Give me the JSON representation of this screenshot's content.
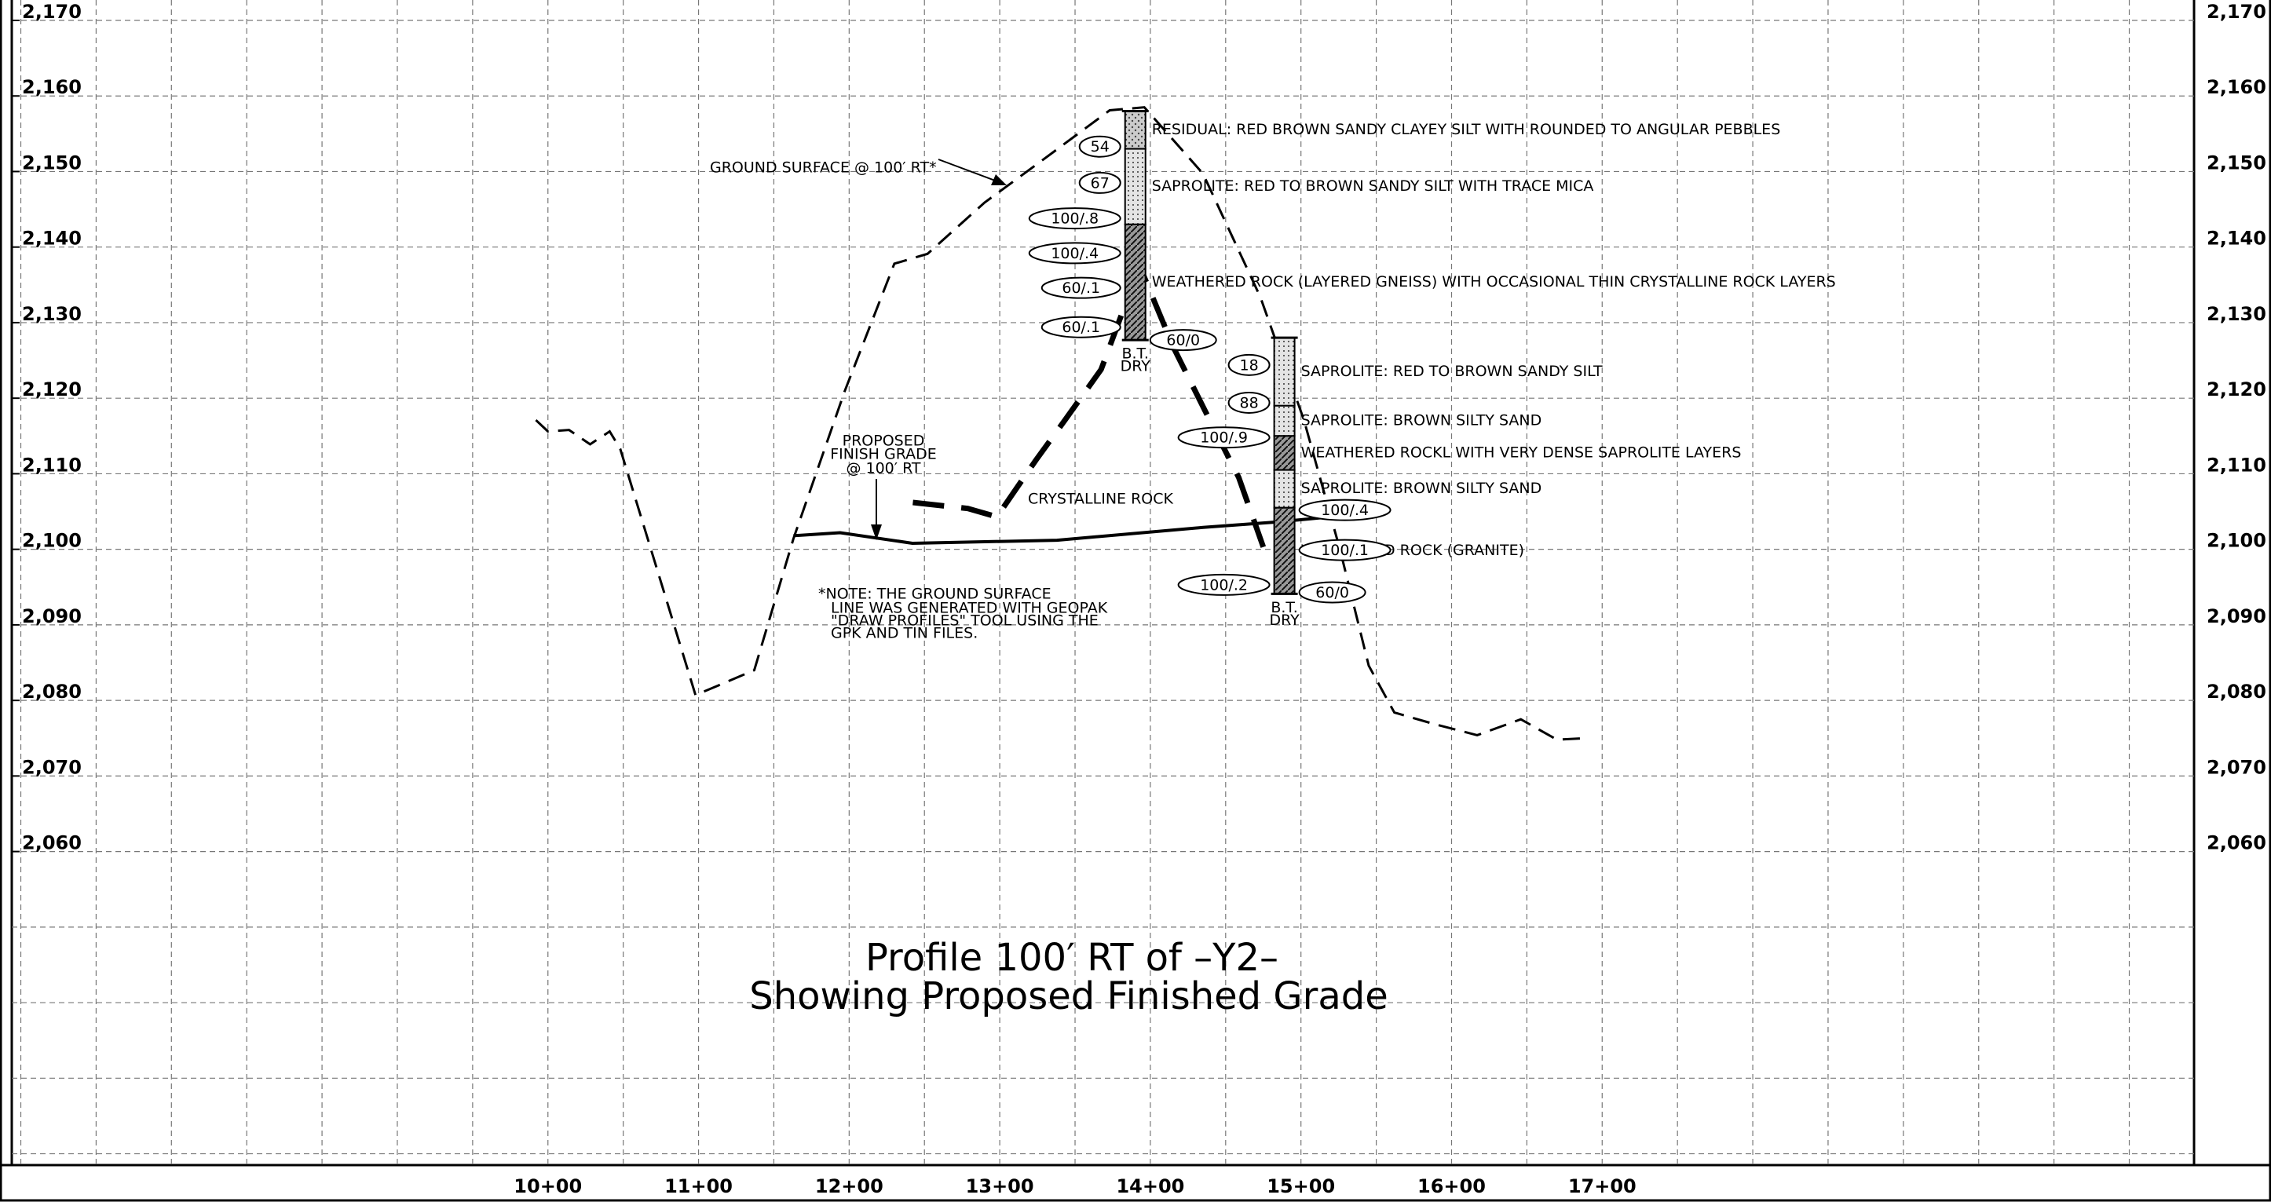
{
  "chart_data": {
    "type": "line",
    "title": "Profile 100′ RT of –Y2–",
    "subtitle": "Showing Proposed Finished Grade",
    "xlim": [
      644,
      2093
    ],
    "ylim": [
      2018.5,
      2172.7
    ],
    "xticks": [
      {
        "value": 1000,
        "label": "10+00"
      },
      {
        "value": 1100,
        "label": "11+00"
      },
      {
        "value": 1200,
        "label": "12+00"
      },
      {
        "value": 1300,
        "label": "13+00"
      },
      {
        "value": 1400,
        "label": "14+00"
      },
      {
        "value": 1500,
        "label": "15+00"
      },
      {
        "value": 1600,
        "label": "16+00"
      },
      {
        "value": 1700,
        "label": "17+00"
      }
    ],
    "yticks": [
      {
        "value": 2170,
        "label": "2,170"
      },
      {
        "value": 2160,
        "label": "2,160"
      },
      {
        "value": 2150,
        "label": "2,150"
      },
      {
        "value": 2140,
        "label": "2,140"
      },
      {
        "value": 2130,
        "label": "2,130"
      },
      {
        "value": 2120,
        "label": "2,120"
      },
      {
        "value": 2110,
        "label": "2,110"
      },
      {
        "value": 2100,
        "label": "2,100"
      },
      {
        "value": 2090,
        "label": "2,090"
      },
      {
        "value": 2080,
        "label": "2,080"
      },
      {
        "value": 2070,
        "label": "2,070"
      },
      {
        "value": 2060,
        "label": "2,060"
      }
    ],
    "xgrid": [
      650,
      700,
      750,
      800,
      850,
      900,
      950,
      1000,
      1050,
      1100,
      1150,
      1200,
      1250,
      1300,
      1350,
      1400,
      1450,
      1500,
      1550,
      1600,
      1650,
      1700,
      1750,
      1800,
      1850,
      1900,
      1950,
      2000,
      2050
    ],
    "ygrid": [
      2170,
      2160,
      2150,
      2140,
      2130,
      2120,
      2110,
      2100,
      2090,
      2080,
      2070,
      2060,
      2050,
      2040,
      2030,
      2020
    ],
    "grid": true,
    "series": [
      {
        "color": "#000000",
        "line_style": "dashed",
        "line_width": 3,
        "x": [
          992,
          1000,
          1014,
          1028,
          1041,
          1048,
          1098,
          1137,
          1163,
          1197,
          1230,
          1252,
          1290,
          1329,
          1373,
          1396,
          1435,
          1473,
          1502,
          1526,
          1545,
          1562,
          1588,
          1617,
          1646,
          1670,
          1689
        ],
        "values": [
          2117.1,
          2115.6,
          2115.8,
          2113.9,
          2115.6,
          2113.3,
          2080.7,
          2084,
          2101.4,
          2120.9,
          2137.8,
          2139.1,
          2145.9,
          2151.6,
          2158.1,
          2158.5,
          2149.7,
          2133.4,
          2117.1,
          2099.9,
          2084.6,
          2078.4,
          2076.9,
          2075.4,
          2077.5,
          2074.8,
          2075
        ]
      },
      {
        "color": "#000000",
        "line_style": "solid",
        "line_width": 4,
        "x": [
          1163,
          1194,
          1242,
          1338,
          1435,
          1483,
          1536
        ],
        "values": [
          2101.8,
          2102.2,
          2100.8,
          2101.2,
          2102.9,
          2103.6,
          2104.6
        ]
      },
      {
        "color": "#000000",
        "line_style": "long-dash",
        "line_width": 7,
        "x": [
          1242.3,
          1278.8,
          1298.1,
          1324,
          1343.3,
          1367.3,
          1381.7,
          1396.2,
          1415.4,
          1439.4,
          1458.7,
          1475
        ],
        "values": [
          2106.2,
          2105.4,
          2104.3,
          2111.8,
          2117.1,
          2123.8,
          2131.5,
          2135.9,
          2126.7,
          2117.1,
          2109.5,
          2100.3
        ]
      }
    ],
    "borings": [
      {
        "station": 1390,
        "top": 2158,
        "bottom": 2127.7,
        "layers": [
          {
            "top": 2158,
            "kind": "residual",
            "description": "RESIDUAL: RED BROWN SANDY CLAYEY SILT WITH ROUNDED TO ANGULAR PEBBLES"
          },
          {
            "top": 2153,
            "kind": "saprolite",
            "description": "SAPROLITE: RED TO BROWN SANDY SILT WITH TRACE MICA"
          },
          {
            "top": 2143,
            "kind": "weathered",
            "description": "WEATHERED ROCK (LAYERED GNEISS) WITH OCCASIONAL THIN CRYSTALLINE ROCK LAYERS"
          }
        ],
        "blow_counts": [
          {
            "label": "54",
            "elevation": 2153.3,
            "side": "left"
          },
          {
            "label": "67",
            "elevation": 2148.5,
            "side": "left"
          },
          {
            "label": "100/.8",
            "elevation": 2143.8,
            "side": "left"
          },
          {
            "label": "100/.4",
            "elevation": 2139.2,
            "side": "left"
          },
          {
            "label": "60/.1",
            "elevation": 2134.6,
            "side": "left"
          },
          {
            "label": "60/.1",
            "elevation": 2129.4,
            "side": "left"
          },
          {
            "label": "60/0",
            "elevation": 2127.7,
            "side": "right"
          }
        ],
        "note": [
          "B.T.",
          "DRY"
        ]
      },
      {
        "station": 1489,
        "top": 2128,
        "bottom": 2094.1,
        "layers": [
          {
            "top": 2128,
            "kind": "saprolite",
            "description": "SAPROLITE: RED TO BROWN SANDY SILT"
          },
          {
            "top": 2119,
            "kind": "saprolite",
            "description": "SAPROLITE: BROWN SILTY SAND"
          },
          {
            "top": 2115,
            "kind": "weathered",
            "description": "WEATHERED ROCKL WITH VERY DENSE SAPROLITE LAYERS"
          },
          {
            "top": 2110.5,
            "kind": "saprolite",
            "description": "SAPROLITE: BROWN SILTY SAND"
          },
          {
            "top": 2105.5,
            "kind": "weathered",
            "description": "WEATHERED ROCK (GRANITE)"
          }
        ],
        "blow_counts": [
          {
            "label": "18",
            "elevation": 2124.4,
            "side": "left"
          },
          {
            "label": "88",
            "elevation": 2119.4,
            "side": "left"
          },
          {
            "label": "100/.9",
            "elevation": 2114.8,
            "side": "left"
          },
          {
            "label": "100/.4",
            "elevation": 2105.2,
            "side": "right"
          },
          {
            "label": "100/.1",
            "elevation": 2099.9,
            "side": "right"
          },
          {
            "label": "100/.2",
            "elevation": 2095.3,
            "side": "left"
          },
          {
            "label": "60/0",
            "elevation": 2094.3,
            "side": "right"
          }
        ],
        "note": [
          "B.T.",
          "DRY"
        ]
      }
    ],
    "annotations": {
      "ground_surface": "GROUND SURFACE @ 100′ RT*",
      "finish_grade": [
        "PROPOSED",
        "FINISH GRADE",
        "@ 100′ RT"
      ],
      "rock": "CRYSTALLINE ROCK",
      "note": [
        "*NOTE: THE GROUND SURFACE",
        "LINE WAS GENERATED WITH GEOPAK",
        "\"DRAW PROFILES\" TOOL USING THE",
        "GPK AND TIN FILES."
      ]
    }
  }
}
